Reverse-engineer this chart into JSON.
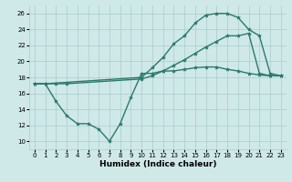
{
  "bg_color": "#cfe8e8",
  "grid_color": "#aacccc",
  "line_color": "#2a7a6a",
  "marker": "*",
  "markersize": 3,
  "linewidth": 1.0,
  "xlabel": "Humidex (Indice chaleur)",
  "xlabel_fontsize": 6.5,
  "tick_fontsize": 5,
  "ylim": [
    9,
    27
  ],
  "yticks": [
    10,
    12,
    14,
    16,
    18,
    20,
    22,
    24,
    26
  ],
  "xlim": [
    -0.5,
    23.5
  ],
  "xticks": [
    0,
    1,
    2,
    3,
    4,
    5,
    6,
    7,
    8,
    9,
    10,
    11,
    12,
    13,
    14,
    15,
    16,
    17,
    18,
    19,
    20,
    21,
    22,
    23
  ],
  "line1_x": [
    0,
    1,
    2,
    3,
    4,
    5,
    6,
    7,
    8,
    9,
    10,
    11,
    12,
    13,
    14,
    15,
    16,
    17,
    18,
    19,
    20,
    21,
    22,
    23
  ],
  "line1_y": [
    17.2,
    17.2,
    15.0,
    13.2,
    12.2,
    12.2,
    11.5,
    10.0,
    12.2,
    15.5,
    18.5,
    18.5,
    18.8,
    18.8,
    19.0,
    19.2,
    19.3,
    19.3,
    19.0,
    18.8,
    18.5,
    18.3,
    18.2,
    18.2
  ],
  "line2_x": [
    0,
    1,
    2,
    3,
    10,
    11,
    12,
    13,
    14,
    15,
    16,
    17,
    18,
    19,
    20,
    21,
    22,
    23
  ],
  "line2_y": [
    17.2,
    17.2,
    17.2,
    17.2,
    17.8,
    18.2,
    18.8,
    19.5,
    20.2,
    21.0,
    21.8,
    22.5,
    23.2,
    23.2,
    23.5,
    18.5,
    18.2,
    18.2
  ],
  "line3_x": [
    0,
    1,
    10,
    11,
    12,
    13,
    14,
    15,
    16,
    17,
    18,
    19,
    20,
    21,
    22,
    23
  ],
  "line3_y": [
    17.2,
    17.2,
    18.0,
    19.2,
    20.5,
    22.2,
    23.2,
    24.8,
    25.8,
    26.0,
    26.0,
    25.5,
    24.0,
    23.2,
    18.5,
    18.2
  ]
}
